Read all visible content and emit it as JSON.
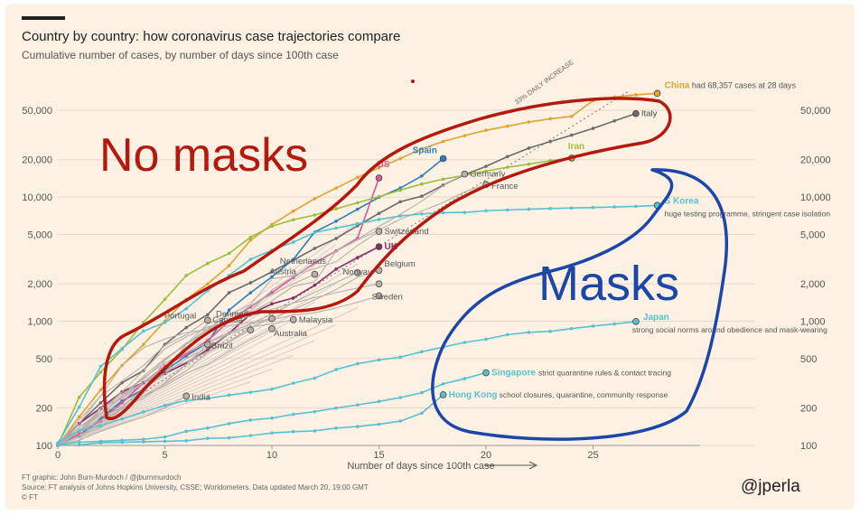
{
  "header": {
    "title": "Country by country: how coronavirus case trajectories compare",
    "subtitle": "Cumulative number of cases, by number of days since 100th case"
  },
  "footer": {
    "credit": "FT graphic: John Burn-Murdoch / @jburnmurdoch",
    "source": "Source: FT analysis of Johns Hopkins University, CSSE; Worldometers. Data updated March 20, 19:00 GMT",
    "copyright": "© FT"
  },
  "handle": "@jperla",
  "colors": {
    "background": "#fdf1e4",
    "china": "#e0a32e",
    "italy": "#6b6b6b",
    "spain": "#2e7fb8",
    "us": "#d45a9a",
    "uk": "#8a2a6a",
    "iran": "#9bbf3c",
    "skorea": "#5bbfd0",
    "japan": "#5bbfd0",
    "singapore": "#5bbfd0",
    "hongkong": "#5bbfd0",
    "others": "#b8b0aa",
    "annotation_red": "#b5190e",
    "annotation_blue": "#1c47a8"
  },
  "annotations": {
    "no_masks": "No masks",
    "masks": "Masks",
    "daily_increase": "33% DAILY INCREASE"
  },
  "chart_data": {
    "type": "line",
    "title": "Country by country: how coronavirus case trajectories compare",
    "subtitle": "Cumulative number of cases, by number of days since 100th case",
    "xlabel": "Number of days since 100th case",
    "ylabel": "",
    "xlim": [
      0,
      30
    ],
    "ylim": [
      100,
      70000
    ],
    "y_scale": "log",
    "grid": true,
    "x_ticks": [
      0,
      5,
      10,
      15,
      20,
      25
    ],
    "y_ticks": [
      100,
      200,
      500,
      1000,
      2000,
      5000,
      10000,
      20000,
      50000
    ],
    "y_tick_labels": [
      "100",
      "200",
      "500",
      "1,000",
      "2,000",
      "5,000",
      "10,000",
      "20,000",
      "50,000"
    ],
    "series": [
      {
        "name": "China",
        "key": "china",
        "note": "had 68,357 cases at 28 days",
        "x": [
          0,
          1,
          2,
          3,
          4,
          5,
          6,
          7,
          8,
          9,
          10,
          11,
          12,
          13,
          14,
          15,
          16,
          17,
          18,
          19,
          20,
          21,
          22,
          23,
          24,
          25,
          26,
          27,
          28
        ],
        "y": [
          100,
          170,
          280,
          440,
          650,
          1000,
          1500,
          2000,
          2800,
          4500,
          6000,
          7700,
          9700,
          11800,
          14400,
          17200,
          20400,
          24500,
          28000,
          31200,
          34500,
          37200,
          40200,
          42700,
          44600,
          59800,
          63900,
          66500,
          68357
        ]
      },
      {
        "name": "Italy",
        "key": "italy",
        "x": [
          0,
          1,
          2,
          3,
          4,
          5,
          6,
          7,
          8,
          9,
          10,
          11,
          12,
          13,
          14,
          15,
          16,
          17,
          18,
          19,
          20,
          21,
          22,
          23,
          24,
          25,
          26,
          27
        ],
        "y": [
          100,
          150,
          220,
          320,
          400,
          650,
          890,
          1130,
          1700,
          2040,
          2500,
          3100,
          3860,
          4640,
          5880,
          7380,
          9170,
          10150,
          12460,
          15110,
          17660,
          21160,
          24750,
          27980,
          31500,
          35710,
          41030,
          47020
        ]
      },
      {
        "name": "Spain",
        "key": "spain",
        "x": [
          0,
          1,
          2,
          3,
          4,
          5,
          6,
          7,
          8,
          9,
          10,
          11,
          12,
          13,
          14,
          15,
          16,
          17,
          18
        ],
        "y": [
          100,
          120,
          165,
          228,
          282,
          400,
          525,
          674,
          1231,
          1695,
          2277,
          3146,
          5232,
          6391,
          7988,
          9942,
          11826,
          14769,
          20410
        ]
      },
      {
        "name": "US",
        "key": "us",
        "x": [
          0,
          1,
          2,
          3,
          4,
          5,
          6,
          7,
          8,
          9,
          10,
          11,
          12,
          13,
          14,
          15
        ],
        "y": [
          100,
          124,
          158,
          221,
          319,
          435,
          541,
          704,
          994,
          1301,
          1697,
          2247,
          2943,
          3680,
          4663,
          14250
        ]
      },
      {
        "name": "Iran",
        "key": "iran",
        "x": [
          0,
          1,
          2,
          3,
          4,
          5,
          6,
          7,
          8,
          9,
          10,
          11,
          12,
          13,
          14,
          15,
          16,
          17,
          18,
          19,
          20,
          21,
          22,
          23,
          24
        ],
        "y": [
          100,
          245,
          388,
          593,
          978,
          1501,
          2336,
          2922,
          3513,
          4747,
          5823,
          6566,
          7161,
          8042,
          9000,
          10075,
          11364,
          12729,
          13938,
          14991,
          16169,
          17361,
          18407,
          19644,
          20610
        ]
      },
      {
        "name": "Germany",
        "key": "germany",
        "x": [
          0,
          1,
          2,
          3,
          4,
          5,
          6,
          7,
          8,
          9,
          10,
          11,
          12,
          13,
          14,
          15,
          16,
          17,
          18,
          19
        ],
        "y": [
          100,
          130,
          159,
          196,
          262,
          482,
          670,
          799,
          1040,
          1176,
          1457,
          1908,
          2078,
          3675,
          4585,
          5795,
          7272,
          9257,
          12327,
          15320
        ]
      },
      {
        "name": "France",
        "key": "france",
        "x": [
          0,
          1,
          2,
          3,
          4,
          5,
          6,
          7,
          8,
          9,
          10,
          11,
          12,
          13,
          14,
          15,
          16,
          17,
          18,
          19,
          20
        ],
        "y": [
          100,
          130,
          191,
          204,
          285,
          377,
          653,
          949,
          1126,
          1209,
          1784,
          2281,
          2876,
          3661,
          4499,
          5423,
          6633,
          7730,
          9043,
          10995,
          12612
        ]
      },
      {
        "name": "S Korea",
        "key": "skorea",
        "note": "huge testing programme, stringent case isolation",
        "x": [
          0,
          1,
          2,
          3,
          4,
          5,
          6,
          7,
          8,
          9,
          10,
          11,
          12,
          13,
          14,
          15,
          16,
          17,
          18,
          19,
          20,
          21,
          22,
          23,
          24,
          25,
          26,
          27,
          28
        ],
        "y": [
          104,
          204,
          433,
          602,
          833,
          977,
          1261,
          1766,
          2337,
          3150,
          3736,
          4335,
          5186,
          5621,
          6088,
          6593,
          7041,
          7314,
          7478,
          7513,
          7755,
          7869,
          7979,
          8086,
          8162,
          8236,
          8320,
          8413,
          8565
        ]
      },
      {
        "name": "Switzerland",
        "key": "switzerland",
        "x": [
          0,
          1,
          2,
          3,
          4,
          5,
          6,
          7,
          8,
          9,
          10,
          11,
          12,
          13,
          14,
          15
        ],
        "y": [
          100,
          150,
          200,
          270,
          340,
          490,
          650,
          870,
          1130,
          1360,
          2200,
          2330,
          2650,
          3010,
          4070,
          5290
        ]
      },
      {
        "name": "UK",
        "key": "uk",
        "x": [
          0,
          1,
          2,
          3,
          4,
          5,
          6,
          7,
          8,
          9,
          10,
          11,
          12,
          13,
          14,
          15
        ],
        "y": [
          100,
          150,
          200,
          270,
          320,
          380,
          460,
          590,
          800,
          1140,
          1380,
          1540,
          1950,
          2630,
          3260,
          3980
        ]
      },
      {
        "name": "Netherlands",
        "key": "netherlands",
        "x": [
          0,
          1,
          2,
          3,
          4,
          5,
          6,
          7,
          8,
          9,
          10,
          11,
          12,
          13,
          14
        ],
        "y": [
          100,
          120,
          190,
          260,
          320,
          380,
          500,
          610,
          800,
          960,
          1140,
          1410,
          1710,
          2050,
          2460
        ]
      },
      {
        "name": "Austria",
        "key": "austria",
        "x": [
          0,
          1,
          2,
          3,
          4,
          5,
          6,
          7,
          8,
          9,
          10,
          11,
          12
        ],
        "y": [
          100,
          130,
          180,
          250,
          360,
          500,
          650,
          860,
          1020,
          1330,
          1650,
          2000,
          2390
        ]
      },
      {
        "name": "Belgium",
        "key": "belgium",
        "x": [
          0,
          1,
          2,
          3,
          4,
          5,
          6,
          7,
          8,
          9,
          10,
          11,
          12,
          13,
          14,
          15
        ],
        "y": [
          100,
          110,
          170,
          200,
          240,
          310,
          400,
          560,
          690,
          890,
          1060,
          1240,
          1490,
          1800,
          2260,
          2570
        ]
      },
      {
        "name": "Norway",
        "key": "norway",
        "x": [
          0,
          1,
          2,
          3,
          4,
          5,
          6,
          7,
          8,
          9,
          10,
          11,
          12,
          13,
          14,
          15
        ],
        "y": [
          100,
          140,
          190,
          270,
          400,
          600,
          750,
          900,
          1000,
          1100,
          1250,
          1400,
          1550,
          1700,
          1850,
          2000
        ]
      },
      {
        "name": "Sweden",
        "key": "sweden",
        "x": [
          0,
          1,
          2,
          3,
          4,
          5,
          6,
          7,
          8,
          9,
          10,
          11,
          12,
          13,
          14,
          15
        ],
        "y": [
          100,
          140,
          180,
          250,
          350,
          460,
          560,
          680,
          810,
          950,
          1030,
          1120,
          1170,
          1280,
          1420,
          1600
        ]
      },
      {
        "name": "Denmark",
        "key": "denmark",
        "x": [
          0,
          1,
          2,
          3,
          4,
          5,
          6,
          7,
          8,
          9,
          10
        ],
        "y": [
          100,
          150,
          250,
          440,
          610,
          720,
          810,
          860,
          920,
          980,
          1050
        ]
      },
      {
        "name": "Portugal",
        "key": "portugal",
        "x": [
          0,
          1,
          2,
          3,
          4,
          5,
          6,
          7
        ],
        "y": [
          100,
          160,
          250,
          330,
          440,
          640,
          780,
          1020
        ]
      },
      {
        "name": "Malaysia",
        "key": "malaysia",
        "x": [
          0,
          1,
          2,
          3,
          4,
          5,
          6,
          7,
          8,
          9,
          10,
          11
        ],
        "y": [
          100,
          130,
          200,
          240,
          320,
          430,
          560,
          670,
          790,
          900,
          950,
          1030
        ]
      },
      {
        "name": "Canada",
        "key": "canada",
        "x": [
          0,
          1,
          2,
          3,
          4,
          5,
          6,
          7,
          8,
          9
        ],
        "y": [
          100,
          130,
          180,
          250,
          320,
          400,
          470,
          570,
          680,
          850
        ]
      },
      {
        "name": "Australia",
        "key": "australia",
        "x": [
          0,
          1,
          2,
          3,
          4,
          5,
          6,
          7,
          8,
          9,
          10
        ],
        "y": [
          100,
          120,
          140,
          200,
          250,
          300,
          380,
          450,
          570,
          710,
          870
        ]
      },
      {
        "name": "Brazil",
        "key": "brazil",
        "x": [
          0,
          1,
          2,
          3,
          4,
          5,
          6,
          7
        ],
        "y": [
          100,
          120,
          150,
          200,
          250,
          320,
          450,
          650
        ]
      },
      {
        "name": "India",
        "key": "india",
        "x": [
          0,
          1,
          2,
          3,
          4,
          5,
          6
        ],
        "y": [
          100,
          110,
          130,
          150,
          170,
          200,
          250
        ]
      },
      {
        "name": "Japan",
        "key": "japan",
        "note": "strong social norms around obedience and mask-wearing",
        "x": [
          0,
          1,
          2,
          3,
          4,
          5,
          6,
          7,
          8,
          9,
          10,
          11,
          12,
          13,
          14,
          15,
          16,
          17,
          18,
          19,
          20,
          21,
          22,
          23,
          24,
          25,
          26,
          27
        ],
        "y": [
          105,
          132,
          144,
          164,
          186,
          210,
          230,
          239,
          254,
          268,
          284,
          317,
          349,
          408,
          455,
          488,
          514,
          568,
          620,
          675,
          716,
          780,
          814,
          829,
          873,
          914,
          950,
          996
        ]
      },
      {
        "name": "Singapore",
        "key": "singapore",
        "note": "strict quarantine rules & contact tracing",
        "x": [
          0,
          1,
          2,
          3,
          4,
          5,
          6,
          7,
          8,
          9,
          10,
          11,
          12,
          13,
          14,
          15,
          16,
          17,
          18,
          19,
          20
        ],
        "y": [
          102,
          106,
          108,
          110,
          112,
          117,
          130,
          138,
          150,
          160,
          166,
          178,
          187,
          200,
          212,
          226,
          243,
          266,
          313,
          345,
          385
        ]
      },
      {
        "name": "Hong Kong",
        "key": "hongkong",
        "note": "school closures, quarantine, community response",
        "x": [
          0,
          1,
          2,
          3,
          4,
          5,
          6,
          7,
          8,
          9,
          10,
          11,
          12,
          13,
          14,
          15,
          16,
          17,
          18
        ],
        "y": [
          100,
          101,
          105,
          106,
          107,
          108,
          109,
          114,
          115,
          120,
          126,
          129,
          131,
          138,
          142,
          148,
          157,
          182,
          256
        ]
      }
    ],
    "reference_line": {
      "label": "33% DAILY INCREASE",
      "daily_growth": 0.33,
      "x": [
        0,
        25
      ],
      "start": 100
    }
  }
}
